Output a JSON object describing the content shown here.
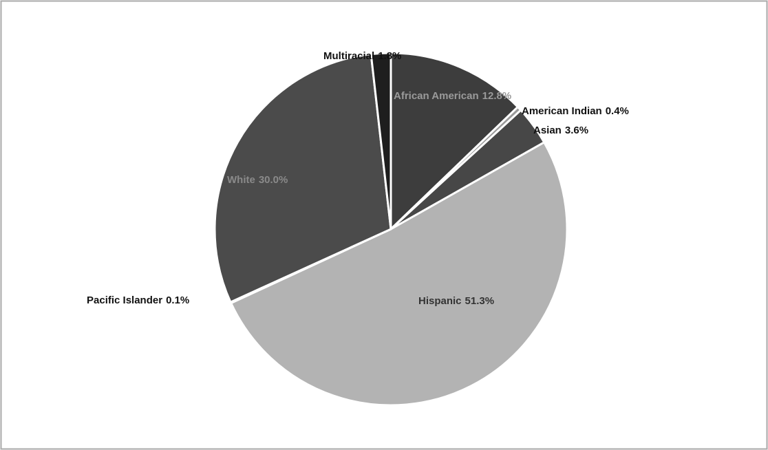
{
  "chart_data": {
    "type": "pie",
    "categories": [
      "African American",
      "American Indian",
      "Asian",
      "Hispanic",
      "Pacific Islander",
      "White",
      "Multiracial"
    ],
    "values": [
      12.8,
      0.4,
      3.6,
      51.3,
      0.1,
      30.0,
      1.8
    ],
    "value_labels": [
      "12.8%",
      "0.4%",
      "3.6%",
      "51.3%",
      "0.1%",
      "30.0%",
      "1.8%"
    ],
    "colors": [
      "#3d3d3d",
      "#9a9a9a",
      "#474747",
      "#b3b3b3",
      "#dddddd",
      "#4b4b4b",
      "#1e1e1e"
    ]
  }
}
